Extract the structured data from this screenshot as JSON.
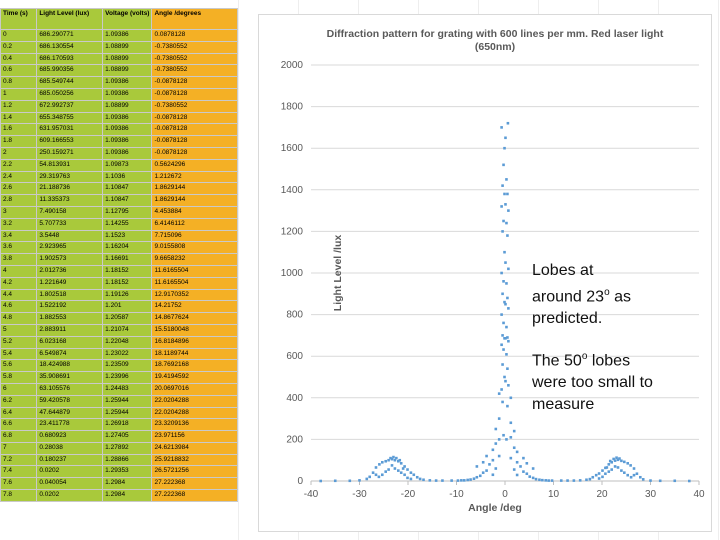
{
  "sheet": {
    "headers": [
      "Time (s)",
      "Light Level (lux)",
      "Voltage (volts)",
      "Angle /degrees"
    ],
    "rows": [
      [
        "0",
        "686.290771",
        "1.09386",
        "0.0878128"
      ],
      [
        "0.2",
        "686.130554",
        "1.08899",
        "-0.7380552"
      ],
      [
        "0.4",
        "686.170593",
        "1.08899",
        "-0.7380552"
      ],
      [
        "0.6",
        "685.990356",
        "1.08899",
        "-0.7380552"
      ],
      [
        "0.8",
        "685.549744",
        "1.09386",
        "-0.0878128"
      ],
      [
        "1",
        "685.050256",
        "1.09386",
        "-0.0878128"
      ],
      [
        "1.2",
        "672.992737",
        "1.08899",
        "-0.7380552"
      ],
      [
        "1.4",
        "655.348755",
        "1.09386",
        "-0.0878128"
      ],
      [
        "1.6",
        "631.957031",
        "1.09386",
        "-0.0878128"
      ],
      [
        "1.8",
        "609.166553",
        "1.09386",
        "-0.0878128"
      ],
      [
        "2",
        "250.159271",
        "1.09386",
        "-0.0878128"
      ],
      [
        "2.2",
        "54.813931",
        "1.09873",
        "0.5624296"
      ],
      [
        "2.4",
        "29.319763",
        "1.1036",
        "1.212672"
      ],
      [
        "2.6",
        "21.188736",
        "1.10847",
        "1.8629144"
      ],
      [
        "2.8",
        "11.335373",
        "1.10847",
        "1.8629144"
      ],
      [
        "3",
        "7.490158",
        "1.12795",
        "4.453884"
      ],
      [
        "3.2",
        "5.707733",
        "1.14255",
        "6.4146112"
      ],
      [
        "3.4",
        "3.5448",
        "1.1523",
        "7.715096"
      ],
      [
        "3.6",
        "2.923965",
        "1.16204",
        "9.0155808"
      ],
      [
        "3.8",
        "1.902573",
        "1.16691",
        "9.6658232"
      ],
      [
        "4",
        "2.012736",
        "1.18152",
        "11.6165504"
      ],
      [
        "4.2",
        "1.221649",
        "1.18152",
        "11.6165504"
      ],
      [
        "4.4",
        "1.802518",
        "1.19126",
        "12.9170352"
      ],
      [
        "4.6",
        "1.522192",
        "1.201",
        "14.21752"
      ],
      [
        "4.8",
        "1.882553",
        "1.20587",
        "14.8677624"
      ],
      [
        "5",
        "2.883911",
        "1.21074",
        "15.5180048"
      ],
      [
        "5.2",
        "6.023168",
        "1.22048",
        "16.8184896"
      ],
      [
        "5.4",
        "6.549874",
        "1.23022",
        "18.1189744"
      ],
      [
        "5.6",
        "18.424988",
        "1.23509",
        "18.7692168"
      ],
      [
        "5.8",
        "35.908691",
        "1.23996",
        "19.4194592"
      ],
      [
        "6",
        "63.105576",
        "1.24483",
        "20.0697016"
      ],
      [
        "6.2",
        "59.420578",
        "1.25944",
        "22.0204288"
      ],
      [
        "6.4",
        "47.644879",
        "1.25944",
        "22.0204288"
      ],
      [
        "6.6",
        "23.411778",
        "1.26918",
        "23.3209136"
      ],
      [
        "6.8",
        "0.680923",
        "1.27405",
        "23.971156"
      ],
      [
        "7",
        "0.28038",
        "1.27892",
        "24.6213984"
      ],
      [
        "7.2",
        "0.180237",
        "1.28866",
        "25.9218832"
      ],
      [
        "7.4",
        "0.0202",
        "1.29353",
        "26.5721256"
      ],
      [
        "7.6",
        "0.040054",
        "1.2984",
        "27.222368"
      ],
      [
        "7.8",
        "0.0202",
        "1.2984",
        "27.222368"
      ]
    ]
  },
  "notes": {
    "note1": [
      "Lobes at",
      "around 23",
      "o",
      " as",
      "predicted."
    ],
    "note2": [
      "The 50",
      "o",
      " lobes",
      "were too small to",
      "measure"
    ]
  },
  "colors": {
    "marker": "#5b9bd5",
    "grid": "#d9d9d9",
    "table_green": "#a9c93b",
    "table_orange": "#f4b025"
  },
  "chart_data": {
    "type": "scatter",
    "title": "Diffraction pattern for grating with 600 lines per mm. Red laser light (650nm)",
    "title_lines": [
      "Diffraction pattern for grating with 600 lines per mm. Red laser light",
      "(650nm)"
    ],
    "xlabel": "Angle /deg",
    "ylabel": "Light Level /lux",
    "xlim": [
      -40,
      40
    ],
    "ylim": [
      0,
      2000
    ],
    "xticks": [
      -40,
      -30,
      -20,
      -10,
      0,
      10,
      20,
      30,
      40
    ],
    "yticks": [
      0,
      200,
      400,
      600,
      800,
      1000,
      1200,
      1400,
      1600,
      1800,
      2000
    ],
    "grid": "horizontal",
    "series": [
      {
        "name": "Light Level",
        "points": [
          [
            -0.7,
            1700
          ],
          [
            0.6,
            1720
          ],
          [
            -0.1,
            1600
          ],
          [
            0.1,
            1650
          ],
          [
            -0.3,
            1520
          ],
          [
            0.3,
            1450
          ],
          [
            -0.5,
            1420
          ],
          [
            0.5,
            1380
          ],
          [
            -0.1,
            1380
          ],
          [
            0.1,
            1330
          ],
          [
            -0.7,
            1320
          ],
          [
            0.7,
            1300
          ],
          [
            -0.3,
            1250
          ],
          [
            0.3,
            1240
          ],
          [
            -0.5,
            1200
          ],
          [
            0.5,
            1180
          ],
          [
            -0.1,
            1100
          ],
          [
            0.1,
            1050
          ],
          [
            0.7,
            1020
          ],
          [
            -0.7,
            1000
          ],
          [
            -0.3,
            960
          ],
          [
            0.3,
            950
          ],
          [
            -0.5,
            900
          ],
          [
            0.5,
            880
          ],
          [
            -0.1,
            860
          ],
          [
            0.1,
            850
          ],
          [
            0.7,
            830
          ],
          [
            -0.7,
            800
          ],
          [
            -0.3,
            760
          ],
          [
            0.3,
            740
          ],
          [
            -0.5,
            700
          ],
          [
            0.5,
            690
          ],
          [
            -0.1,
            686
          ],
          [
            0.1,
            686
          ],
          [
            0.7,
            672
          ],
          [
            -0.7,
            655
          ],
          [
            -0.3,
            632
          ],
          [
            0.3,
            609
          ],
          [
            -0.5,
            560
          ],
          [
            0.5,
            540
          ],
          [
            -0.1,
            500
          ],
          [
            0.1,
            480
          ],
          [
            0.7,
            460
          ],
          [
            -0.7,
            440
          ],
          [
            -1.2,
            420
          ],
          [
            1.2,
            400
          ],
          [
            -0.5,
            380
          ],
          [
            0.5,
            360
          ],
          [
            -1.2,
            300
          ],
          [
            1.2,
            280
          ],
          [
            -1.9,
            250
          ],
          [
            1.9,
            240
          ],
          [
            -0.3,
            220
          ],
          [
            0.3,
            200
          ],
          [
            -1.9,
            180
          ],
          [
            1.9,
            160
          ],
          [
            -2.5,
            150
          ],
          [
            2.5,
            140
          ],
          [
            -1.2,
            120
          ],
          [
            1.2,
            110
          ],
          [
            -2.5,
            100
          ],
          [
            2.5,
            90
          ],
          [
            -3.2,
            80
          ],
          [
            3.2,
            70
          ],
          [
            -1.9,
            60
          ],
          [
            1.9,
            55
          ],
          [
            -3.8,
            50
          ],
          [
            3.8,
            45
          ],
          [
            -4.5,
            40
          ],
          [
            4.5,
            35
          ],
          [
            -2.5,
            30
          ],
          [
            2.5,
            29
          ],
          [
            -5.1,
            25
          ],
          [
            5.1,
            21
          ],
          [
            -5.8,
            18
          ],
          [
            5.8,
            15
          ],
          [
            -6.4,
            11
          ],
          [
            6.4,
            9
          ],
          [
            -7.1,
            7
          ],
          [
            7.1,
            6
          ],
          [
            -7.7,
            5
          ],
          [
            7.7,
            4
          ],
          [
            -8.4,
            3
          ],
          [
            8.4,
            3
          ],
          [
            -9.0,
            3
          ],
          [
            9.0,
            2
          ],
          [
            -9.7,
            2
          ],
          [
            9.7,
            2
          ],
          [
            -11.0,
            2
          ],
          [
            11.6,
            2
          ],
          [
            -12.9,
            2
          ],
          [
            12.9,
            2
          ],
          [
            -14.2,
            2
          ],
          [
            14.2,
            2
          ],
          [
            -15.5,
            3
          ],
          [
            15.5,
            3
          ],
          [
            -16.8,
            6
          ],
          [
            16.8,
            6
          ],
          [
            -17.5,
            10
          ],
          [
            17.5,
            9
          ],
          [
            -18.1,
            18
          ],
          [
            18.1,
            18
          ],
          [
            -18.8,
            30
          ],
          [
            18.8,
            28
          ],
          [
            -19.4,
            40
          ],
          [
            19.4,
            36
          ],
          [
            -20.1,
            55
          ],
          [
            20.1,
            50
          ],
          [
            -20.7,
            70
          ],
          [
            20.7,
            63
          ],
          [
            -21.4,
            85
          ],
          [
            21.4,
            80
          ],
          [
            -22.0,
            95
          ],
          [
            22.0,
            90
          ],
          [
            -22.7,
            100
          ],
          [
            22.7,
            98
          ],
          [
            -23.3,
            105
          ],
          [
            23.3,
            102
          ],
          [
            -24.0,
            100
          ],
          [
            24.0,
            97
          ],
          [
            -24.6,
            95
          ],
          [
            24.6,
            92
          ],
          [
            -25.3,
            90
          ],
          [
            25.3,
            85
          ],
          [
            -25.9,
            80
          ],
          [
            25.9,
            75
          ],
          [
            -26.6,
            65
          ],
          [
            26.6,
            60
          ],
          [
            -21.4,
            40
          ],
          [
            21.4,
            45
          ],
          [
            -22.0,
            50
          ],
          [
            22.0,
            55
          ],
          [
            -22.7,
            60
          ],
          [
            22.7,
            70
          ],
          [
            -23.3,
            75
          ],
          [
            23.3,
            65
          ],
          [
            -24.0,
            55
          ],
          [
            24.0,
            50
          ],
          [
            -24.6,
            45
          ],
          [
            24.6,
            40
          ],
          [
            -20.7,
            30
          ],
          [
            20.7,
            35
          ],
          [
            -25.3,
            30
          ],
          [
            25.3,
            28
          ],
          [
            -23.0,
            115
          ],
          [
            23.0,
            112
          ],
          [
            -23.6,
            110
          ],
          [
            23.6,
            108
          ],
          [
            -22.4,
            110
          ],
          [
            22.4,
            106
          ],
          [
            -21.7,
            100
          ],
          [
            21.7,
            96
          ],
          [
            -27.2,
            40
          ],
          [
            27.2,
            35
          ],
          [
            -27.9,
            20
          ],
          [
            27.9,
            18
          ],
          [
            -28.5,
            10
          ],
          [
            28.5,
            8
          ],
          [
            -30.0,
            3
          ],
          [
            30.0,
            2
          ],
          [
            -32.0,
            1
          ],
          [
            32.0,
            1
          ],
          [
            -35.0,
            1
          ],
          [
            35.0,
            1
          ],
          [
            -38.0,
            0
          ],
          [
            38.0,
            0
          ],
          [
            -20.1,
            15
          ],
          [
            20.1,
            20
          ],
          [
            -19.4,
            10
          ],
          [
            19.4,
            12
          ],
          [
            -26.0,
            20
          ],
          [
            26.0,
            18
          ],
          [
            -26.6,
            30
          ],
          [
            26.6,
            28
          ],
          [
            -21.0,
            60
          ],
          [
            21.0,
            65
          ],
          [
            -3.8,
            120
          ],
          [
            3.8,
            110
          ],
          [
            -4.5,
            90
          ],
          [
            4.5,
            85
          ],
          [
            -5.8,
            70
          ],
          [
            5.8,
            60
          ],
          [
            -1.2,
            200
          ],
          [
            1.2,
            210
          ]
        ]
      }
    ]
  }
}
